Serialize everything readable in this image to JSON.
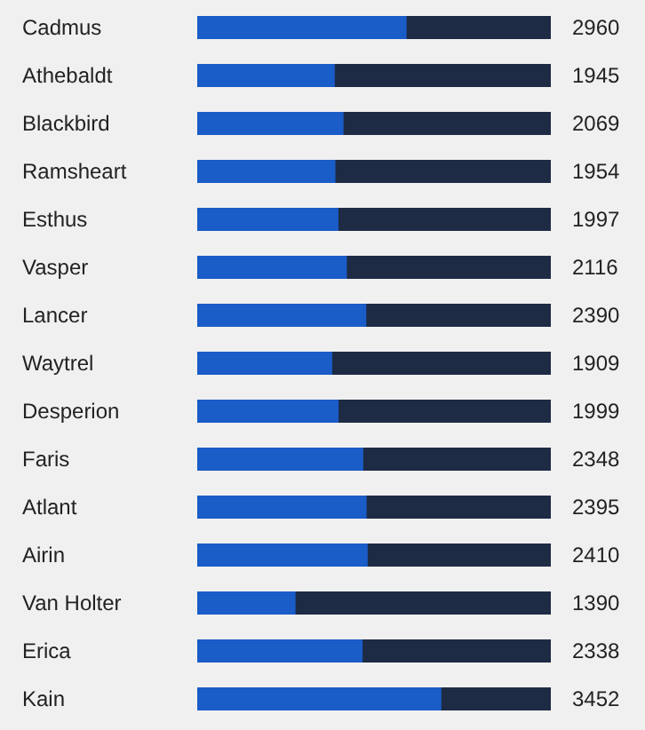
{
  "chart_data": {
    "type": "bar",
    "orientation": "horizontal",
    "categories": [
      "Cadmus",
      "Athebaldt",
      "Blackbird",
      "Ramsheart",
      "Esthus",
      "Vasper",
      "Lancer",
      "Waytrel",
      "Desperion",
      "Faris",
      "Atlant",
      "Airin",
      "Van Holter",
      "Erica",
      "Kain"
    ],
    "values": [
      2960,
      1945,
      2069,
      1954,
      1997,
      2116,
      2390,
      1909,
      1999,
      2348,
      2395,
      2410,
      1390,
      2338,
      3452
    ],
    "color": "#1a5cc8",
    "xlim": [
      0,
      5000
    ],
    "data_labels": true,
    "tick_labels": "y",
    "grid": false
  }
}
